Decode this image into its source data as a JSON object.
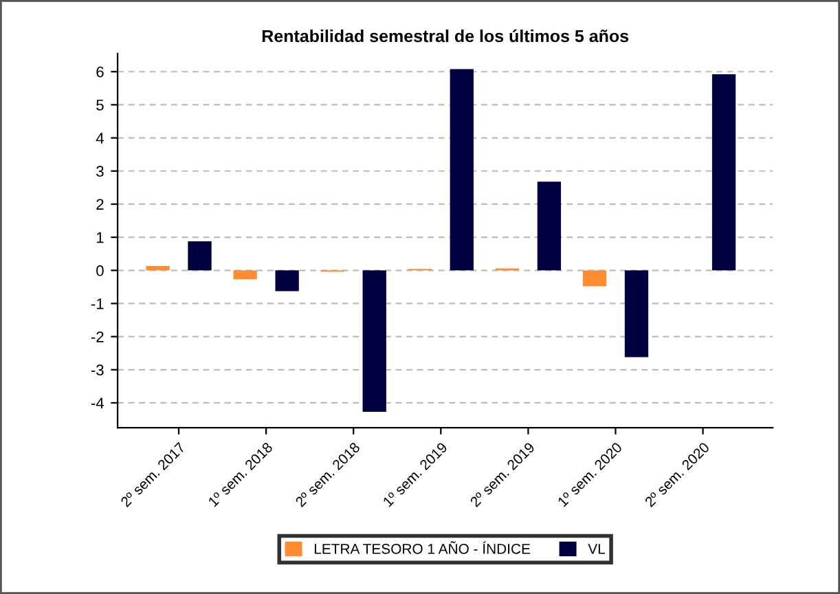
{
  "chart_data": {
    "type": "bar",
    "title": "Rentabilidad semestral de los últimos 5 años",
    "categories": [
      "2º sem. 2017",
      "1º sem. 2018",
      "2º sem. 2018",
      "1º sem. 2019",
      "2º sem. 2019",
      "1º sem. 2020",
      "2º sem. 2020"
    ],
    "series": [
      {
        "name": "LETRA TESORO 1 AÑO - ÍNDICE",
        "color": "#ff8c33",
        "values": [
          0.13,
          -0.27,
          -0.04,
          0.04,
          0.06,
          -0.48,
          0.0
        ]
      },
      {
        "name": "VL",
        "color": "#000040",
        "values": [
          0.88,
          -0.63,
          -4.27,
          6.08,
          2.68,
          -2.62,
          5.92
        ]
      }
    ],
    "ylim": [
      -4.75,
      6.55
    ],
    "yticks": [
      -4,
      -3,
      -2,
      -1,
      0,
      1,
      2,
      3,
      4,
      5,
      6
    ],
    "grid": "y",
    "legend": "bottom"
  }
}
